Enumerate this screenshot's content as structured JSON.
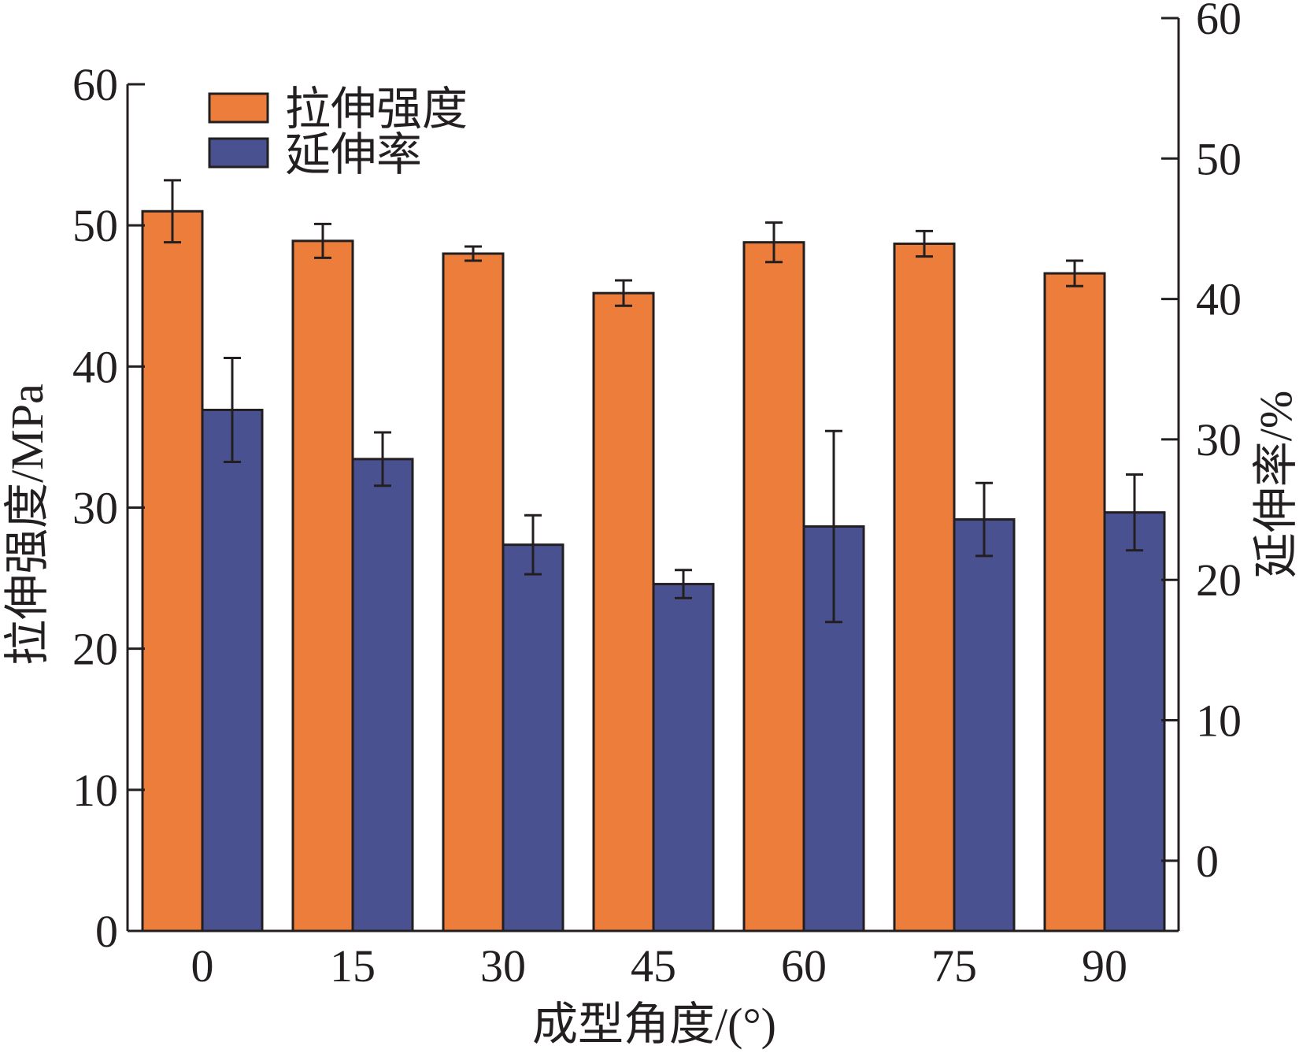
{
  "chart_data": {
    "type": "bar",
    "categories": [
      "0",
      "15",
      "30",
      "45",
      "60",
      "75",
      "90"
    ],
    "xlabel": "成型角度/(°)",
    "ylabel_left": "拉伸强度/MPa",
    "ylabel_right": "延伸率/%",
    "ylim_left": [
      0,
      60
    ],
    "ylim_right": [
      -5,
      60
    ],
    "yticks_left": [
      0,
      10,
      20,
      30,
      40,
      50,
      60
    ],
    "yticks_right": [
      0,
      10,
      20,
      30,
      40,
      50,
      60
    ],
    "grid": false,
    "legend_position": "top-left",
    "series": [
      {
        "name": "拉伸强度",
        "axis": "left",
        "color": "#ed7d3a",
        "values": [
          51.0,
          48.9,
          48.0,
          45.2,
          48.8,
          48.7,
          46.6
        ],
        "errors": [
          2.2,
          1.2,
          0.5,
          0.9,
          1.4,
          0.9,
          0.9
        ]
      },
      {
        "name": "延伸率",
        "axis": "right",
        "color": "#4a5190",
        "values": [
          32.1,
          28.6,
          22.5,
          19.7,
          23.8,
          24.3,
          24.8
        ],
        "errors": [
          3.7,
          1.9,
          2.1,
          1.0,
          6.8,
          2.6,
          2.7
        ]
      }
    ]
  }
}
